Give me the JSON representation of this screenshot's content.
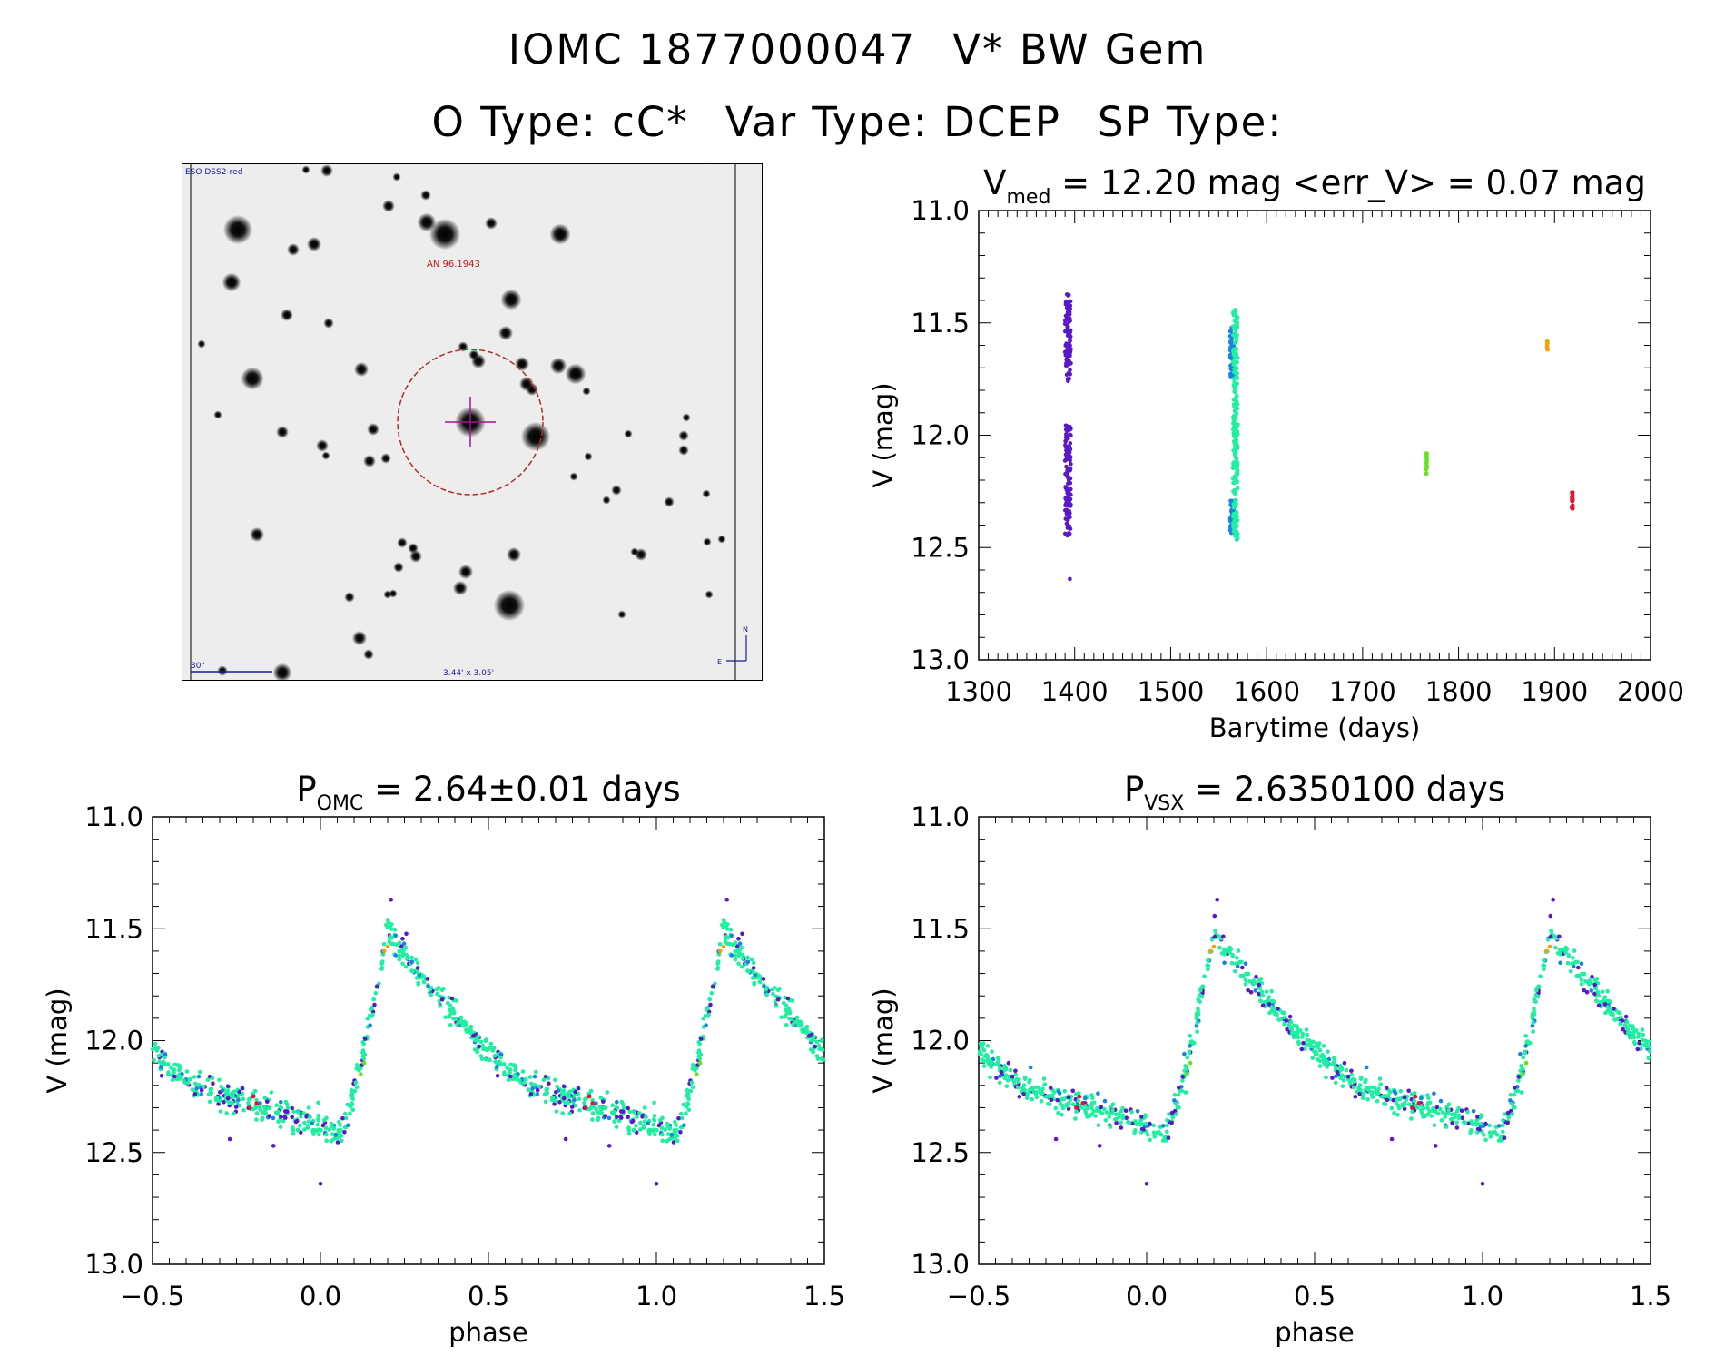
{
  "header": {
    "id": "IOMC 1877000047",
    "name": "V* BW Gem",
    "otype": "O Type: cC*",
    "vartype": "Var Type: DCEP",
    "sptype": "SP Type:"
  },
  "finder": {
    "survey_label": "ESO DSS2-red",
    "object_label": "AN 96.1943",
    "scale_label": "30\"",
    "fov_label": "3.44' x 3.05'",
    "north": "N",
    "east": "E"
  },
  "colors": {
    "purple": "#5a18c8",
    "blue": "#1a82e6",
    "green": "#1ef0a0",
    "lime": "#66e21e",
    "orange": "#f5a00a",
    "red": "#e6142d",
    "circle": "#b42828",
    "cross": "#a0148c"
  },
  "chart_data": [
    {
      "type": "scatter",
      "id": "lightcurve",
      "title_main": "V",
      "title_sub": "med",
      "title_rest": " = 12.20 mag <err_V> = 0.07 mag",
      "xlabel": "Barytime (days)",
      "ylabel": "V (mag)",
      "xlim": [
        1300,
        2000
      ],
      "ylim": [
        13.0,
        11.0
      ],
      "xticks": [
        "1300",
        "1400",
        "1500",
        "1600",
        "1700",
        "1800",
        "1900",
        "2000"
      ],
      "yticks": [
        "11.0",
        "11.5",
        "12.0",
        "12.5",
        "13.0"
      ],
      "series": [
        {
          "name": "purple",
          "x_range": [
            1390,
            1396
          ],
          "segments": [
            [
              11.37,
              11.76
            ],
            [
              11.95,
              12.45
            ]
          ],
          "outlier": [
            1395,
            12.64
          ]
        },
        {
          "name": "blue",
          "x_range": [
            1562,
            1566
          ],
          "segments": [
            [
              11.52,
              11.75
            ],
            [
              12.28,
              12.45
            ]
          ]
        },
        {
          "name": "green",
          "x_range": [
            1565,
            1570
          ],
          "segments": [
            [
              11.44,
              12.47
            ]
          ]
        },
        {
          "name": "lime",
          "x_range": [
            1766,
            1767
          ],
          "segments": [
            [
              12.08,
              12.18
            ]
          ]
        },
        {
          "name": "orange",
          "x_range": [
            1892,
            1893
          ],
          "segments": [
            [
              11.57,
              11.62
            ]
          ]
        },
        {
          "name": "red",
          "x_range": [
            1918,
            1919
          ],
          "segments": [
            [
              12.24,
              12.33
            ]
          ]
        }
      ]
    },
    {
      "type": "scatter",
      "id": "phase_omc",
      "title_main": "P",
      "title_sub": "OMC",
      "title_rest": " = 2.64±0.01 days",
      "xlabel": "phase",
      "ylabel": "V (mag)",
      "xlim": [
        -0.5,
        1.5
      ],
      "ylim": [
        13.0,
        11.0
      ],
      "xticks": [
        "−0.5",
        "0.0",
        "0.5",
        "1.0",
        "1.5"
      ],
      "yticks": [
        "11.0",
        "11.5",
        "12.0",
        "12.5",
        "13.0"
      ],
      "curve": {
        "min_mag": 12.42,
        "min_phase": 0.05,
        "max_mag": 11.5,
        "max_phase": 0.2,
        "end_mag": 12.0
      }
    },
    {
      "type": "scatter",
      "id": "phase_vsx",
      "title_main": "P",
      "title_sub": "VSX",
      "title_rest": " = 2.6350100 days",
      "xlabel": "phase",
      "ylabel": "V (mag)",
      "xlim": [
        -0.5,
        1.5
      ],
      "ylim": [
        13.0,
        11.0
      ],
      "xticks": [
        "−0.5",
        "0.0",
        "0.5",
        "1.0",
        "1.5"
      ],
      "yticks": [
        "11.0",
        "11.5",
        "12.0",
        "12.5",
        "13.0"
      ],
      "curve": {
        "min_mag": 12.42,
        "min_phase": 0.05,
        "max_mag": 11.5,
        "max_phase": 0.2,
        "end_mag": 12.0
      }
    }
  ]
}
